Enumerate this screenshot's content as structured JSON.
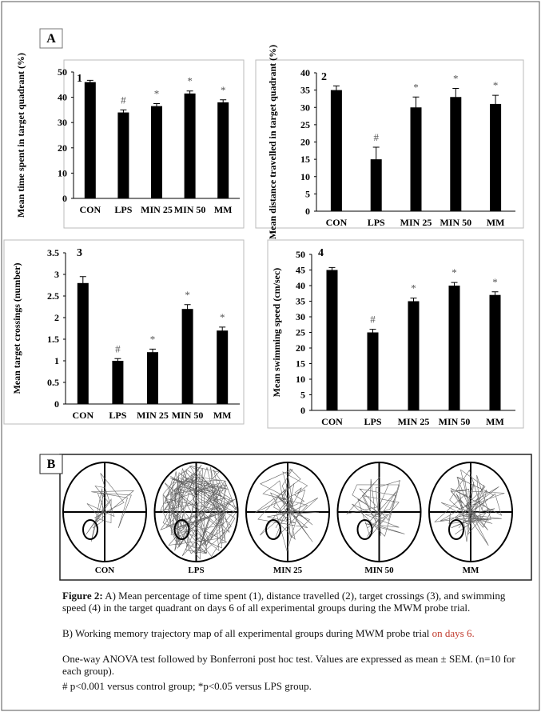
{
  "panels": {
    "a": "A",
    "b": "B"
  },
  "chart_data": [
    {
      "type": "bar",
      "panel_number": "1",
      "ylabel": "Mean time spent in target quadrant (%)",
      "categories": [
        "CON",
        "LPS",
        "MIN 25",
        "MIN 50",
        "MM"
      ],
      "values": [
        46,
        34,
        36.5,
        41.5,
        38
      ],
      "errors": [
        0.7,
        1,
        1,
        1,
        1
      ],
      "markers": [
        null,
        "#",
        "*",
        "*",
        "*"
      ],
      "color": "#000000",
      "ylim": [
        0,
        50
      ],
      "yticks": [
        0,
        10,
        20,
        30,
        40,
        50
      ]
    },
    {
      "type": "bar",
      "panel_number": "2",
      "ylabel": "Mean distance travelled in target quadrant (%)",
      "categories": [
        "CON",
        "LPS",
        "MIN 25",
        "MIN 50",
        "MM"
      ],
      "values": [
        35,
        15,
        30,
        33,
        31
      ],
      "errors": [
        1.2,
        3.5,
        3,
        2.5,
        2.5
      ],
      "markers": [
        null,
        "#",
        "*",
        "*",
        "*"
      ],
      "color": "#000000",
      "ylim": [
        0,
        40
      ],
      "yticks": [
        0,
        5,
        10,
        15,
        20,
        25,
        30,
        35,
        40
      ]
    },
    {
      "type": "bar",
      "panel_number": "3",
      "ylabel": "Mean target crossings (number)",
      "categories": [
        "CON",
        "LPS",
        "MIN 25",
        "MIN 50",
        "MM"
      ],
      "values": [
        2.8,
        1.0,
        1.2,
        2.2,
        1.7
      ],
      "errors": [
        0.15,
        0.05,
        0.07,
        0.1,
        0.08
      ],
      "markers": [
        null,
        "#",
        "*",
        "*",
        "*"
      ],
      "color": "#000000",
      "ylim": [
        0,
        3.5
      ],
      "yticks": [
        0,
        0.5,
        1,
        1.5,
        2,
        2.5,
        3,
        3.5
      ]
    },
    {
      "type": "bar",
      "panel_number": "4",
      "ylabel": "Mean swimming speed (cm/sec)",
      "categories": [
        "CON",
        "LPS",
        "MIN 25",
        "MIN 50",
        "MM"
      ],
      "values": [
        45,
        25,
        35,
        40,
        37
      ],
      "errors": [
        0.8,
        1,
        1,
        1,
        1
      ],
      "markers": [
        null,
        "#",
        "*",
        "*",
        "*"
      ],
      "color": "#000000",
      "ylim": [
        0,
        50
      ],
      "yticks": [
        0,
        5,
        10,
        15,
        20,
        25,
        30,
        35,
        40,
        45,
        50
      ]
    }
  ],
  "trajectory": {
    "labels": [
      "CON",
      "LPS",
      "MIN 25",
      "MIN 50",
      "MM"
    ]
  },
  "caption": {
    "figure_label": "Figure 2:",
    "part_a": "A) Mean percentage of time spent (1), distance travelled (2), target crossings (3), and swimming speed (4) in the target quadrant on days 6 of all experimental groups during the MWM probe trial.",
    "part_b": "B) Working memory trajectory map of all experimental groups during MWM probe trial",
    "part_b_highlight": "on days 6.",
    "stats": "One-way ANOVA test followed by Bonferroni post hoc test. Values are expressed as mean ± SEM. (n=10 for each group).",
    "significance": "# p<0.001 versus control group; *p<0.05 versus LPS group."
  }
}
